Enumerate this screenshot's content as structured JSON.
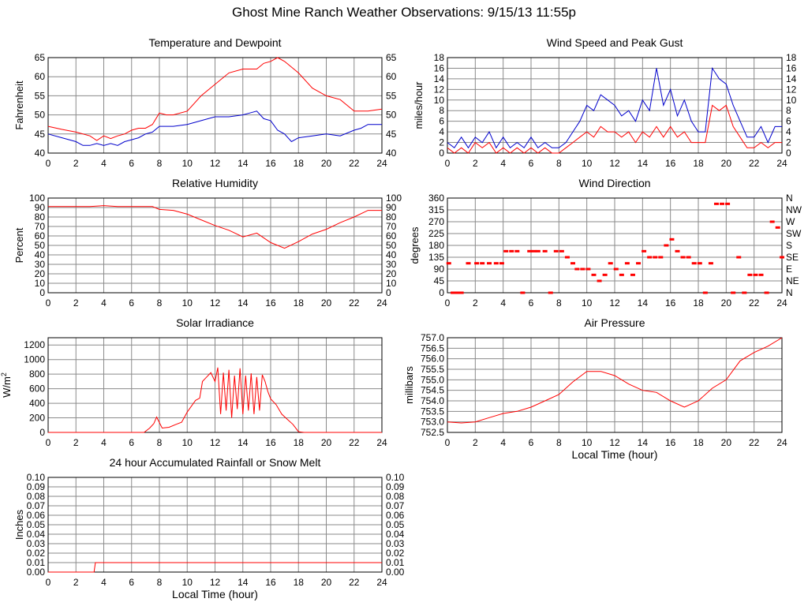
{
  "page_title": "Ghost Mine Ranch Weather Observations: 9/15/13 11:55p",
  "colors": {
    "red": "#ff0000",
    "blue": "#0000cc",
    "grid": "#8a8a8a",
    "axis": "#000000"
  },
  "chart_data": [
    {
      "id": "temp",
      "type": "line",
      "title": "Temperature and Dewpoint",
      "xlabel": "",
      "ylabel": "Fahrenheit",
      "xlim": [
        0,
        24
      ],
      "ylim": [
        40,
        65
      ],
      "x_ticks": [
        0,
        2,
        4,
        6,
        8,
        10,
        12,
        14,
        16,
        18,
        20,
        22,
        24
      ],
      "y_ticks": [
        40,
        45,
        50,
        55,
        60,
        65
      ],
      "y_tick_labels": [
        "40",
        "45",
        "50",
        "55",
        "60",
        "65"
      ],
      "right_y_ticks": [
        40,
        45,
        50,
        55,
        60,
        65
      ],
      "right_y_tick_labels": [
        "40",
        "45",
        "50",
        "55",
        "60",
        "65"
      ],
      "grid": true,
      "series": [
        {
          "color": "#ff0000",
          "x": [
            0,
            1,
            2,
            3,
            3.5,
            4,
            4.5,
            5,
            5.5,
            6,
            6.5,
            7,
            7.5,
            8,
            8.5,
            9,
            10,
            11,
            12,
            13,
            14,
            15,
            15.5,
            16,
            16.5,
            17,
            18,
            19,
            20,
            21,
            22,
            23,
            24
          ],
          "y": [
            47,
            46.2,
            45.5,
            44.5,
            43.3,
            44.5,
            43.8,
            44.5,
            45,
            46,
            46.5,
            46.5,
            47.5,
            50.5,
            50,
            50,
            51,
            55,
            58,
            61,
            62,
            62,
            63.5,
            64,
            65,
            64,
            61,
            57,
            55,
            54,
            51,
            51,
            51.5
          ]
        },
        {
          "color": "#0000cc",
          "x": [
            0,
            1,
            2,
            2.5,
            3,
            3.5,
            4,
            4.5,
            5,
            5.5,
            6,
            6.5,
            7,
            7.5,
            8,
            9,
            10,
            11,
            12,
            13,
            14,
            14.5,
            15,
            15.5,
            16,
            16.5,
            17,
            17.5,
            18,
            19,
            20,
            21,
            22,
            22.5,
            23,
            24
          ],
          "y": [
            45,
            44,
            43,
            42,
            42,
            42.5,
            42,
            42.5,
            42,
            43,
            43.5,
            44,
            45,
            45.5,
            47,
            47,
            47.5,
            48.5,
            49.5,
            49.5,
            50,
            50.5,
            51,
            49,
            48.5,
            46,
            45,
            43,
            44,
            44.5,
            45,
            44.5,
            46,
            46.5,
            47.5,
            47.5
          ]
        }
      ]
    },
    {
      "id": "wind",
      "type": "line",
      "title": "Wind Speed and Peak Gust",
      "xlabel": "",
      "ylabel": "miles/hour",
      "xlim": [
        0,
        24
      ],
      "ylim": [
        0,
        18
      ],
      "x_ticks": [
        0,
        2,
        4,
        6,
        8,
        10,
        12,
        14,
        16,
        18,
        20,
        22,
        24
      ],
      "y_ticks": [
        0,
        2,
        4,
        6,
        8,
        10,
        12,
        14,
        16,
        18
      ],
      "y_tick_labels": [
        "0",
        "2",
        "4",
        "6",
        "8",
        "10",
        "12",
        "14",
        "16",
        "18"
      ],
      "right_y_ticks": [
        0,
        2,
        4,
        6,
        8,
        10,
        12,
        14,
        16,
        18
      ],
      "right_y_tick_labels": [
        "0",
        "2",
        "4",
        "6",
        "8",
        "10",
        "12",
        "14",
        "16",
        "18"
      ],
      "grid": true,
      "series": [
        {
          "color": "#0000cc",
          "x": [
            0,
            0.5,
            1,
            1.5,
            2,
            2.5,
            3,
            3.5,
            4,
            4.5,
            5,
            5.5,
            6,
            6.5,
            7,
            7.5,
            8,
            8.5,
            9,
            9.5,
            10,
            10.5,
            11,
            11.5,
            12,
            12.5,
            13,
            13.5,
            14,
            14.5,
            15,
            15.5,
            16,
            16.5,
            17,
            17.5,
            18,
            18.5,
            19,
            19.5,
            20,
            20.5,
            21,
            21.5,
            22,
            22.5,
            23,
            23.5,
            24
          ],
          "y": [
            2,
            1,
            3,
            1,
            3,
            2,
            4,
            1,
            3,
            1,
            2,
            1,
            3,
            1,
            2,
            1,
            1,
            2,
            4,
            6,
            9,
            8,
            11,
            10,
            9,
            7,
            8,
            6,
            10,
            8,
            16,
            9,
            12,
            7,
            10,
            6,
            4,
            4,
            16,
            14,
            13,
            9,
            6,
            3,
            3,
            5,
            2,
            5,
            5
          ]
        },
        {
          "color": "#ff0000",
          "x": [
            0,
            0.5,
            1,
            1.5,
            2,
            2.5,
            3,
            3.5,
            4,
            4.5,
            5,
            5.5,
            6,
            6.5,
            7,
            7.5,
            8,
            8.5,
            9,
            9.5,
            10,
            10.5,
            11,
            11.5,
            12,
            12.5,
            13,
            13.5,
            14,
            14.5,
            15,
            15.5,
            16,
            16.5,
            17,
            17.5,
            18,
            18.5,
            19,
            19.5,
            20,
            20.5,
            21,
            21.5,
            22,
            22.5,
            23,
            23.5,
            24
          ],
          "y": [
            1,
            0,
            1,
            0,
            2,
            1,
            2,
            0,
            1,
            0,
            1,
            0,
            1,
            0,
            1,
            0,
            0,
            1,
            2,
            3,
            4,
            3,
            5,
            4,
            4,
            3,
            4,
            2,
            4,
            3,
            5,
            3,
            5,
            3,
            4,
            2,
            2,
            2,
            9,
            8,
            9,
            5,
            3,
            1,
            1,
            2,
            1,
            2,
            2
          ]
        }
      ]
    },
    {
      "id": "humidity",
      "type": "line",
      "title": "Relative Humidity",
      "xlabel": "",
      "ylabel": "Percent",
      "xlim": [
        0,
        24
      ],
      "ylim": [
        0,
        100
      ],
      "x_ticks": [
        0,
        2,
        4,
        6,
        8,
        10,
        12,
        14,
        16,
        18,
        20,
        22,
        24
      ],
      "y_ticks": [
        0,
        10,
        20,
        30,
        40,
        50,
        60,
        70,
        80,
        90,
        100
      ],
      "y_tick_labels": [
        "0",
        "10",
        "20",
        "30",
        "40",
        "50",
        "60",
        "70",
        "80",
        "90",
        "100"
      ],
      "right_y_ticks": [
        0,
        10,
        20,
        30,
        40,
        50,
        60,
        70,
        80,
        90,
        100
      ],
      "right_y_tick_labels": [
        "0",
        "10",
        "20",
        "30",
        "40",
        "50",
        "60",
        "70",
        "80",
        "90",
        "100"
      ],
      "grid": true,
      "series": [
        {
          "color": "#ff0000",
          "x": [
            0,
            1,
            2,
            3,
            4,
            5,
            6,
            7,
            7.5,
            8,
            9,
            10,
            11,
            12,
            13,
            14,
            15,
            16,
            17,
            18,
            19,
            20,
            21,
            22,
            23,
            24
          ],
          "y": [
            91,
            91,
            91,
            91,
            92,
            91,
            91,
            91,
            91,
            88,
            87,
            83,
            77,
            71,
            66,
            59,
            63,
            53,
            47,
            54,
            62,
            67,
            74,
            80,
            87,
            87
          ]
        }
      ]
    },
    {
      "id": "winddir",
      "type": "scatter",
      "title": "Wind Direction",
      "xlabel": "",
      "ylabel": "degrees",
      "xlim": [
        0,
        24
      ],
      "ylim": [
        0,
        360
      ],
      "x_ticks": [
        0,
        2,
        4,
        6,
        8,
        10,
        12,
        14,
        16,
        18,
        20,
        22,
        24
      ],
      "y_ticks": [
        0,
        45,
        90,
        135,
        180,
        225,
        270,
        315,
        360
      ],
      "y_tick_labels": [
        "0",
        "45",
        "90",
        "135",
        "180",
        "225",
        "270",
        "315",
        "360"
      ],
      "right_y_ticks": [
        0,
        45,
        90,
        135,
        180,
        225,
        270,
        315,
        360
      ],
      "right_y_tick_labels": [
        "N",
        "NE",
        "E",
        "SE",
        "S",
        "SW",
        "W",
        "NW",
        "N"
      ],
      "grid": true,
      "series": [
        {
          "color": "#ff0000",
          "x": [
            0.1,
            0.4,
            0.7,
            1.0,
            1.5,
            2.1,
            2.5,
            3.0,
            3.5,
            3.9,
            4.2,
            4.6,
            5.0,
            5.4,
            5.9,
            6.2,
            6.5,
            7.0,
            7.4,
            7.8,
            8.2,
            8.6,
            9.0,
            9.3,
            9.7,
            10.1,
            10.5,
            10.9,
            11.3,
            11.7,
            12.1,
            12.5,
            12.9,
            13.3,
            13.7,
            14.1,
            14.5,
            14.9,
            15.3,
            15.7,
            16.1,
            16.5,
            16.9,
            17.3,
            17.7,
            18.1,
            18.5,
            18.9,
            19.3,
            19.7,
            20.1,
            20.5,
            20.9,
            21.3,
            21.7,
            22.1,
            22.5,
            22.9,
            23.3,
            23.7,
            24.0
          ],
          "y": [
            112,
            0,
            0,
            0,
            112,
            112,
            112,
            112,
            112,
            112,
            158,
            158,
            158,
            0,
            158,
            158,
            158,
            158,
            0,
            158,
            158,
            135,
            112,
            90,
            90,
            90,
            68,
            45,
            68,
            112,
            90,
            68,
            112,
            68,
            112,
            158,
            135,
            135,
            135,
            180,
            203,
            158,
            135,
            135,
            112,
            112,
            0,
            112,
            338,
            338,
            338,
            0,
            135,
            0,
            68,
            68,
            68,
            0,
            270,
            248,
            135
          ]
        }
      ]
    },
    {
      "id": "solar",
      "type": "line",
      "title": "Solar Irradiance",
      "xlabel": "",
      "ylabel": "W/m2",
      "xlim": [
        0,
        24
      ],
      "ylim": [
        0,
        1300
      ],
      "x_ticks": [
        0,
        2,
        4,
        6,
        8,
        10,
        12,
        14,
        16,
        18,
        20,
        22,
        24
      ],
      "y_ticks": [
        0,
        200,
        400,
        600,
        800,
        1000,
        1200
      ],
      "y_tick_labels": [
        "0",
        "200",
        "400",
        "600",
        "800",
        "1000",
        "1200"
      ],
      "right_y_ticks": [],
      "right_y_tick_labels": [],
      "grid": true,
      "series": [
        {
          "color": "#ff0000",
          "x": [
            0,
            6.9,
            7.3,
            7.6,
            7.8,
            8.2,
            8.7,
            9.2,
            9.6,
            10.0,
            10.3,
            10.6,
            10.9,
            11.1,
            11.4,
            11.7,
            12.0,
            12.2,
            12.4,
            12.6,
            12.8,
            13.0,
            13.2,
            13.4,
            13.6,
            13.8,
            14.0,
            14.2,
            14.4,
            14.6,
            14.8,
            15.0,
            15.2,
            15.4,
            15.6,
            15.8,
            16.0,
            16.4,
            16.8,
            17.2,
            17.6,
            18.0,
            18.4,
            18.8,
            24
          ],
          "y": [
            0,
            0,
            60,
            120,
            210,
            60,
            70,
            110,
            140,
            280,
            360,
            440,
            470,
            700,
            760,
            820,
            700,
            890,
            250,
            820,
            300,
            860,
            200,
            780,
            320,
            880,
            250,
            780,
            300,
            810,
            250,
            760,
            300,
            790,
            700,
            560,
            460,
            380,
            250,
            180,
            110,
            10,
            0,
            0,
            0
          ]
        }
      ]
    },
    {
      "id": "pressure",
      "type": "line",
      "title": "Air Pressure",
      "xlabel": "Local Time (hour)",
      "ylabel": "millibars",
      "xlim": [
        0,
        24
      ],
      "ylim": [
        752.5,
        757.0
      ],
      "x_ticks": [
        0,
        2,
        4,
        6,
        8,
        10,
        12,
        14,
        16,
        18,
        20,
        22,
        24
      ],
      "y_ticks": [
        752.5,
        753.0,
        753.5,
        754.0,
        754.5,
        755.0,
        755.5,
        756.0,
        756.5,
        757.0
      ],
      "y_tick_labels": [
        "752.5",
        "753.0",
        "753.5",
        "754.0",
        "754.5",
        "755.0",
        "755.5",
        "756.0",
        "756.5",
        "757.0"
      ],
      "right_y_ticks": [],
      "right_y_tick_labels": [],
      "grid": true,
      "series": [
        {
          "color": "#ff0000",
          "x": [
            0,
            1,
            2,
            3,
            4,
            5,
            6,
            7,
            8,
            9,
            10,
            11,
            12,
            13,
            14,
            15,
            16,
            17,
            18,
            19,
            20,
            21,
            22,
            23,
            24
          ],
          "y": [
            753.0,
            752.95,
            753.0,
            753.2,
            753.4,
            753.5,
            753.7,
            754.0,
            754.3,
            754.9,
            755.4,
            755.4,
            755.2,
            754.8,
            754.5,
            754.4,
            754.0,
            753.7,
            754.0,
            754.6,
            755.0,
            755.9,
            756.3,
            756.6,
            757.0
          ]
        }
      ]
    },
    {
      "id": "rain",
      "type": "line",
      "title": "24 hour Accumulated Rainfall or Snow Melt",
      "xlabel": "Local Time (hour)",
      "ylabel": "Inches",
      "xlim": [
        0,
        24
      ],
      "ylim": [
        0,
        0.1
      ],
      "x_ticks": [
        0,
        2,
        4,
        6,
        8,
        10,
        12,
        14,
        16,
        18,
        20,
        22,
        24
      ],
      "y_ticks": [
        0,
        0.01,
        0.02,
        0.03,
        0.04,
        0.05,
        0.06,
        0.07,
        0.08,
        0.09,
        0.1
      ],
      "y_tick_labels": [
        "0.00",
        "0.01",
        "0.02",
        "0.03",
        "0.04",
        "0.05",
        "0.06",
        "0.07",
        "0.08",
        "0.09",
        "0.10"
      ],
      "right_y_ticks": [
        0,
        0.01,
        0.02,
        0.03,
        0.04,
        0.05,
        0.06,
        0.07,
        0.08,
        0.09,
        0.1
      ],
      "right_y_tick_labels": [
        "0.00",
        "0.01",
        "0.02",
        "0.03",
        "0.04",
        "0.05",
        "0.06",
        "0.07",
        "0.08",
        "0.09",
        "0.10"
      ],
      "grid": true,
      "series": [
        {
          "color": "#ff0000",
          "x": [
            0,
            3.3,
            3.4,
            24
          ],
          "y": [
            0,
            0,
            0.01,
            0.01
          ]
        }
      ]
    }
  ]
}
